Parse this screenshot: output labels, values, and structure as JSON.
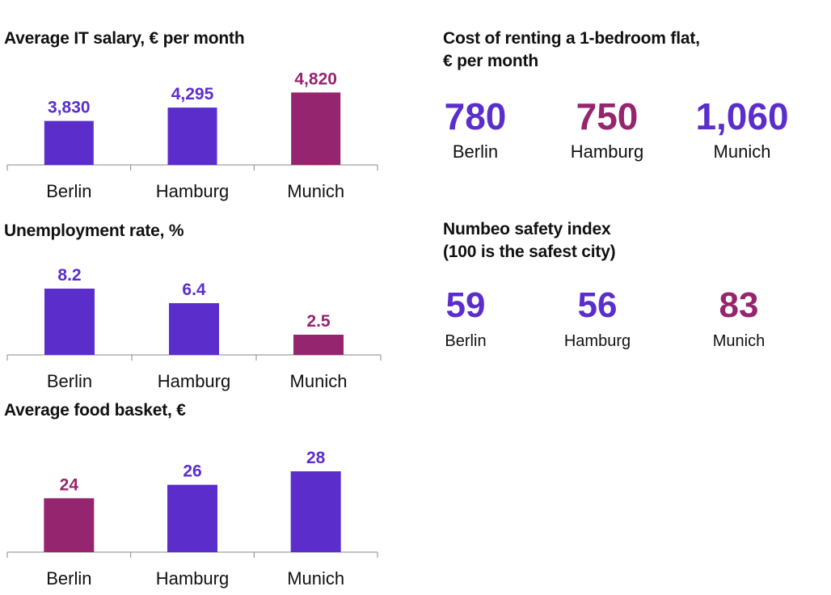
{
  "colors": {
    "default": "#5b2ecc",
    "highlight": "#96256f",
    "axis": "#888888",
    "text": "#111111"
  },
  "chart_data": [
    {
      "type": "bar",
      "title": "Average IT salary, € per month",
      "categories": [
        "Berlin",
        "Hamburg",
        "Munich"
      ],
      "values": [
        3830,
        4295,
        4820
      ],
      "labels": [
        "3,830",
        "4,295",
        "4,820"
      ],
      "highlight_index": 2,
      "ylim": [
        2300,
        5000
      ]
    },
    {
      "type": "bar",
      "title": "Unemployment rate, %",
      "categories": [
        "Berlin",
        "Hamburg",
        "Munich"
      ],
      "values": [
        8.2,
        6.4,
        2.5
      ],
      "labels": [
        "8.2",
        "6.4",
        "2.5"
      ],
      "highlight_index": 2,
      "ylim": [
        0,
        9.3
      ]
    },
    {
      "type": "bar",
      "title": "Average food basket, €",
      "categories": [
        "Berlin",
        "Hamburg",
        "Munich"
      ],
      "values": [
        24,
        26,
        28
      ],
      "labels": [
        "24",
        "26",
        "28"
      ],
      "highlight_index": 0,
      "ylim": [
        16,
        29.8
      ]
    }
  ],
  "rent": {
    "title_line1": "Cost of renting a 1-bedroom flat,",
    "title_line2": "€ per month",
    "items": [
      {
        "value": "780",
        "city": "Berlin",
        "highlight": false
      },
      {
        "value": "750",
        "city": "Hamburg",
        "highlight": true
      },
      {
        "value": "1,060",
        "city": "Munich",
        "highlight": false
      }
    ]
  },
  "safety": {
    "title_line1": "Numbeo safety index",
    "title_line2": "(100 is the safest city)",
    "items": [
      {
        "value": "59",
        "city": "Berlin",
        "highlight": false
      },
      {
        "value": "56",
        "city": "Hamburg",
        "highlight": false
      },
      {
        "value": "83",
        "city": "Munich",
        "highlight": true
      }
    ]
  }
}
